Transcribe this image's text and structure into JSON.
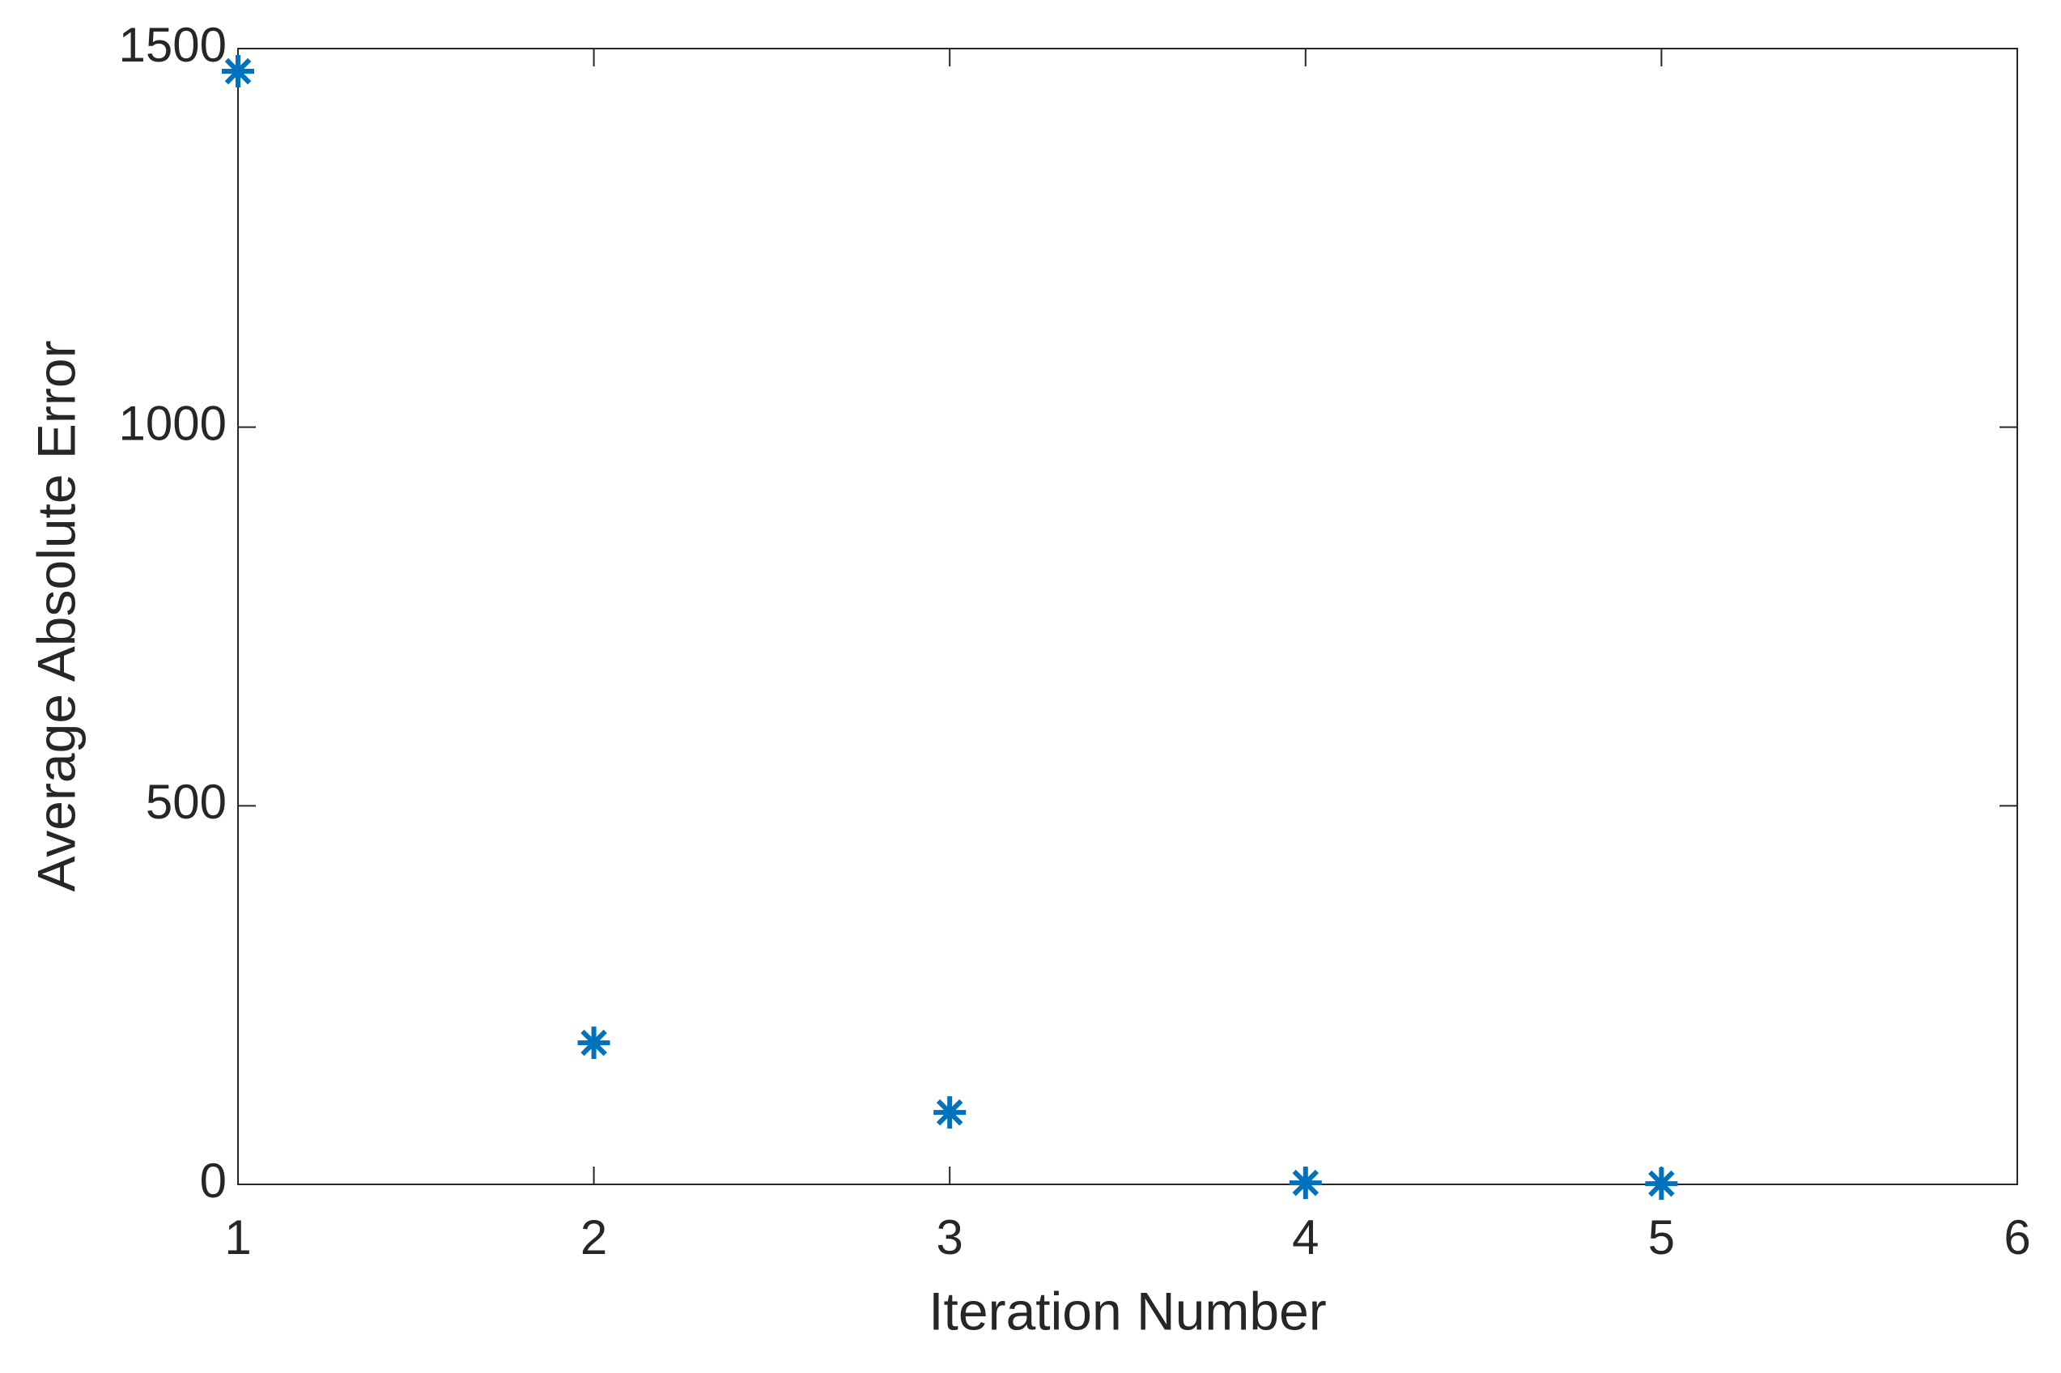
{
  "chart_data": {
    "type": "scatter",
    "x_label": "Iteration Number",
    "y_label": "Average Absolute Error",
    "x": [
      1,
      2,
      3,
      4,
      5
    ],
    "series": [
      {
        "color": "#0072bd",
        "marker": "asterisk",
        "values": [
          1470,
          187,
          95,
          2,
          1
        ]
      }
    ],
    "xlim": [
      1,
      6
    ],
    "xticks": [
      1,
      2,
      3,
      4,
      5,
      6
    ],
    "ylim": [
      0,
      1500
    ],
    "yticks": [
      0,
      500,
      1000,
      1500
    ],
    "grid": false
  }
}
